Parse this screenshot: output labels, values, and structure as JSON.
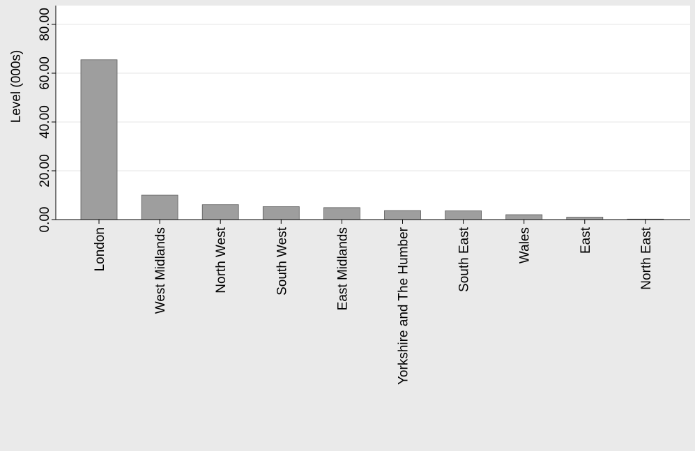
{
  "chart_data": {
    "type": "bar",
    "title": "",
    "xlabel": "",
    "ylabel": "Level (000s)",
    "ylim": [
      0,
      80
    ],
    "yticks": [
      "0.00",
      "20.00",
      "40.00",
      "60.00",
      "80.00"
    ],
    "grid": true,
    "legend": "none",
    "categories": [
      "London",
      "West Midlands",
      "North West",
      "South West",
      "East Midlands",
      "Yorkshire and The Humber",
      "South East",
      "Wales",
      "East",
      "North East"
    ],
    "values": [
      65.5,
      10.0,
      6.1,
      5.3,
      4.9,
      3.7,
      3.6,
      2.0,
      1.0,
      0.2
    ],
    "colors": {
      "bar_fill": "#9e9e9e",
      "bar_stroke": "#5a5a5a",
      "plot_bg": "#ffffff",
      "page_bg": "#eaeaea",
      "grid": "#e4e4e4"
    }
  }
}
